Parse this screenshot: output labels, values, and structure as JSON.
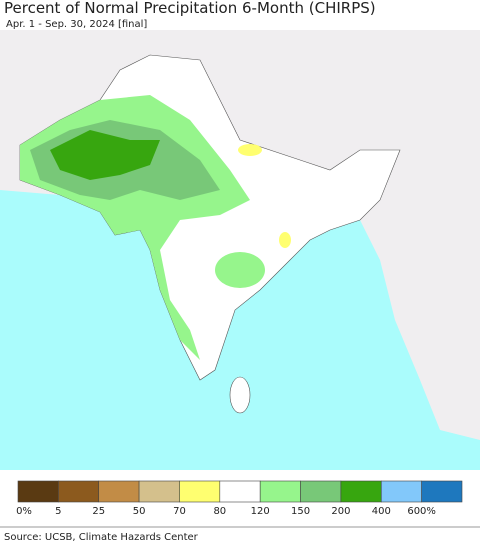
{
  "title": "Percent of Normal Precipitation 6-Month (CHIRPS)",
  "subtitle": "Apr. 1 - Sep. 30, 2024 [final]",
  "legend": {
    "colors": [
      "#5a3a12",
      "#8c5a1e",
      "#c28c46",
      "#d4c08c",
      "#ffff70",
      "#ffffff",
      "#96f58c",
      "#78c878",
      "#37a60f",
      "#82c8fa",
      "#1e78be"
    ],
    "labels": [
      "0%",
      "5",
      "25",
      "50",
      "70",
      "80",
      "120",
      "150",
      "200",
      "400",
      "600%"
    ]
  },
  "source": "Source: UCSB, Climate Hazards Center"
}
